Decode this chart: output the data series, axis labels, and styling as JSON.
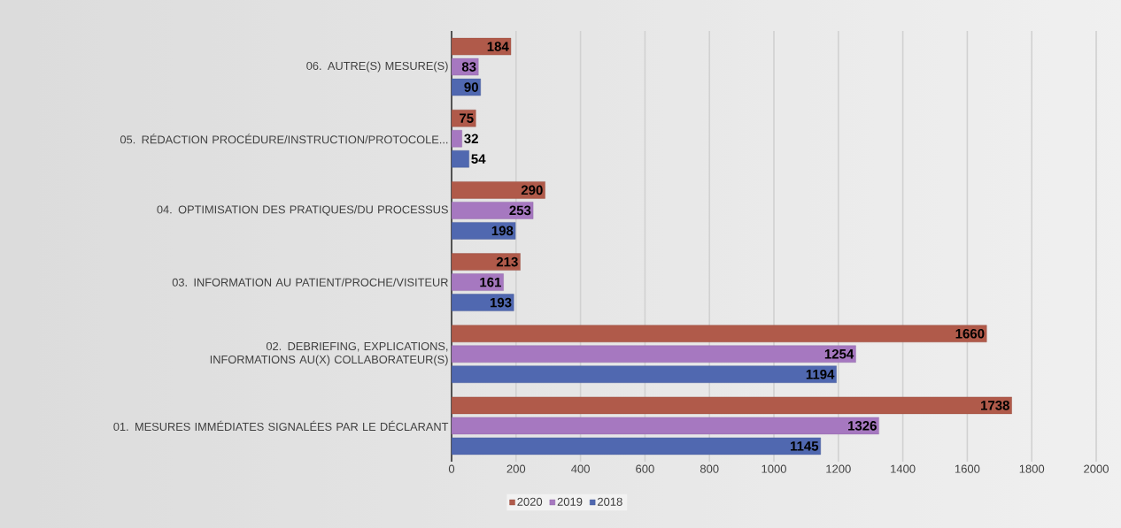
{
  "chart_data": {
    "type": "bar",
    "orientation": "horizontal",
    "categories": [
      "06. AUTRE(S) MESURE(S)",
      "05. RÉDACTION PROCÉDURE/INSTRUCTION/PROTOCOLE...",
      "04. OPTIMISATION DES PRATIQUES/DU PROCESSUS",
      "03. INFORMATION AU PATIENT/PROCHE/VISITEUR",
      "02. DEBRIEFING, EXPLICATIONS, INFORMATIONS AU(X) COLLABORATEUR(S)",
      "01. MESURES IMMÉDIATES SIGNALÉES PAR LE DÉCLARANT"
    ],
    "series": [
      {
        "name": "2020",
        "color": "#b05a4a",
        "values": [
          184,
          75,
          290,
          213,
          1660,
          1738
        ]
      },
      {
        "name": "2019",
        "color": "#a678c0",
        "values": [
          83,
          32,
          253,
          161,
          1254,
          1326
        ]
      },
      {
        "name": "2018",
        "color": "#5068b0",
        "values": [
          90,
          54,
          198,
          193,
          1194,
          1145
        ]
      }
    ],
    "xlim": [
      0,
      2000
    ],
    "xticks": [
      0,
      200,
      400,
      600,
      800,
      1000,
      1200,
      1400,
      1600,
      1800,
      2000
    ],
    "grid": "x",
    "legend": "bottom",
    "data_labels": true
  }
}
